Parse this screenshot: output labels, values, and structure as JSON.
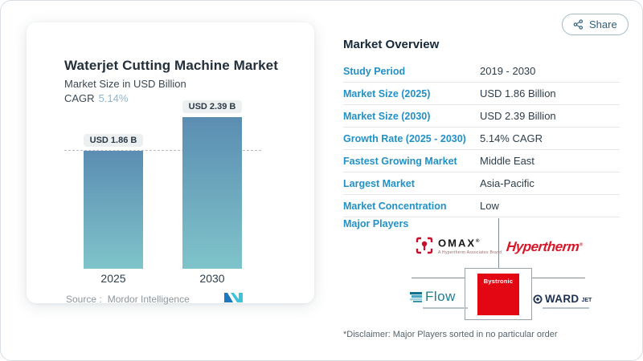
{
  "share": {
    "label": "Share"
  },
  "chart_card": {
    "title": "Waterjet Cutting Machine Market",
    "subtitle": "Market Size in USD Billion",
    "cagr_label": "CAGR",
    "cagr_value": "5.14%",
    "source_label": "Source :",
    "source_value": "Mordor Intelligence"
  },
  "chart_data": {
    "type": "bar",
    "title": "Waterjet Cutting Machine Market",
    "ylabel": "Market Size in USD Billion",
    "categories": [
      "2025",
      "2030"
    ],
    "values": [
      1.86,
      2.39
    ],
    "value_labels": [
      "USD 1.86 B",
      "USD 2.39 B"
    ],
    "reference_line": {
      "value": 1.86,
      "style": "dashed"
    },
    "ylim": [
      0,
      2.39
    ],
    "grid": false,
    "legend": "none"
  },
  "overview": {
    "title": "Market Overview",
    "rows": [
      {
        "label": "Study Period",
        "value": "2019 - 2030"
      },
      {
        "label": "Market Size (2025)",
        "value": "USD 1.86 Billion"
      },
      {
        "label": "Market Size (2030)",
        "value": "USD 2.39 Billion"
      },
      {
        "label": "Growth Rate (2025 - 2030)",
        "value": "5.14% CAGR"
      },
      {
        "label": "Fastest Growing Market",
        "value": "Middle East"
      },
      {
        "label": "Largest Market",
        "value": "Asia-Pacific"
      },
      {
        "label": "Market Concentration",
        "value": "Low"
      }
    ],
    "major_players_label": "Major Players",
    "players": {
      "omax": {
        "wordmark": "OMAX",
        "trademark": "®",
        "tagline": "A Hypertherm Associates Brand"
      },
      "hypertherm": {
        "wordmark": "Hypertherm",
        "trademark": "®"
      },
      "bystronic": {
        "wordmark": "Bystronic"
      },
      "flow": {
        "wordmark": "Flow"
      },
      "wardjet": {
        "wordmark_main": "WARD",
        "wordmark_sub": "JET"
      }
    },
    "disclaimer": "*Disclaimer: Major Players sorted in no particular order"
  },
  "colors": {
    "accent_blue": "#2191c8",
    "heading_navy": "#15293b",
    "text_dark": "#2e3d4a",
    "cagr_blue": "#8fb4d3",
    "bar_gradient_top": "#5b8db2",
    "bar_gradient_bottom": "#7fc4ca",
    "logo_red": "#d7182a",
    "bystronic_red": "#e30613",
    "flow_teal": "#1b7f96",
    "ward_navy": "#1e3050",
    "share_teal": "#2f5e7c"
  }
}
